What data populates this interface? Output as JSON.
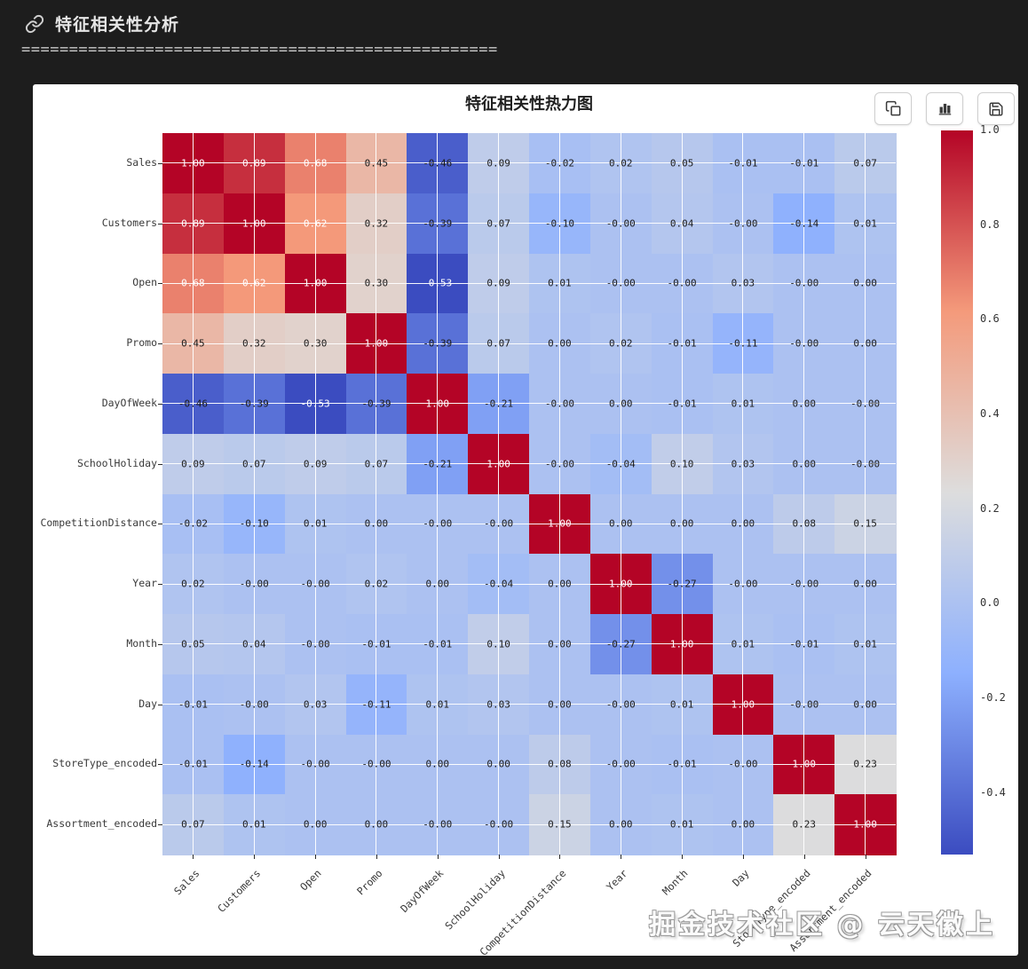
{
  "header": {
    "title": "特征相关性分析",
    "separator": "=================================================="
  },
  "panel": {
    "chart_title": "特征相关性热力图",
    "toolbar": [
      {
        "name": "copy-button",
        "icon": "copy-icon"
      },
      {
        "name": "chart-button",
        "icon": "bar-chart-icon"
      },
      {
        "name": "save-button",
        "icon": "save-icon"
      }
    ]
  },
  "chart_data": {
    "type": "heatmap",
    "title": "特征相关性热力图",
    "labels": [
      "Sales",
      "Customers",
      "Open",
      "Promo",
      "DayOfWeek",
      "SchoolHoliday",
      "CompetitionDistance",
      "Year",
      "Month",
      "Day",
      "StoreType_encoded",
      "Assortment_encoded"
    ],
    "matrix": [
      [
        "1.00",
        "0.89",
        "0.68",
        "0.45",
        "-0.46",
        "0.09",
        "-0.02",
        "0.02",
        "0.05",
        "-0.01",
        "-0.01",
        "0.07"
      ],
      [
        "0.89",
        "1.00",
        "0.62",
        "0.32",
        "-0.39",
        "0.07",
        "-0.10",
        "-0.00",
        "0.04",
        "-0.00",
        "-0.14",
        "0.01"
      ],
      [
        "0.68",
        "0.62",
        "1.00",
        "0.30",
        "-0.53",
        "0.09",
        "0.01",
        "-0.00",
        "-0.00",
        "0.03",
        "-0.00",
        "0.00"
      ],
      [
        "0.45",
        "0.32",
        "0.30",
        "1.00",
        "-0.39",
        "0.07",
        "0.00",
        "0.02",
        "-0.01",
        "-0.11",
        "-0.00",
        "0.00"
      ],
      [
        "-0.46",
        "-0.39",
        "-0.53",
        "-0.39",
        "1.00",
        "-0.21",
        "-0.00",
        "0.00",
        "-0.01",
        "0.01",
        "0.00",
        "-0.00"
      ],
      [
        "0.09",
        "0.07",
        "0.09",
        "0.07",
        "-0.21",
        "1.00",
        "-0.00",
        "-0.04",
        "0.10",
        "0.03",
        "0.00",
        "-0.00"
      ],
      [
        "-0.02",
        "-0.10",
        "0.01",
        "0.00",
        "-0.00",
        "-0.00",
        "1.00",
        "0.00",
        "0.00",
        "0.00",
        "0.08",
        "0.15"
      ],
      [
        "0.02",
        "-0.00",
        "-0.00",
        "0.02",
        "0.00",
        "-0.04",
        "0.00",
        "1.00",
        "-0.27",
        "-0.00",
        "-0.00",
        "0.00"
      ],
      [
        "0.05",
        "0.04",
        "-0.00",
        "-0.01",
        "-0.01",
        "0.10",
        "0.00",
        "-0.27",
        "1.00",
        "0.01",
        "-0.01",
        "0.01"
      ],
      [
        "-0.01",
        "-0.00",
        "0.03",
        "-0.11",
        "0.01",
        "0.03",
        "0.00",
        "-0.00",
        "0.01",
        "1.00",
        "-0.00",
        "0.00"
      ],
      [
        "-0.01",
        "-0.14",
        "-0.00",
        "-0.00",
        "0.00",
        "0.00",
        "0.08",
        "-0.00",
        "-0.01",
        "-0.00",
        "1.00",
        "0.23"
      ],
      [
        "0.07",
        "0.01",
        "0.00",
        "0.00",
        "-0.00",
        "-0.00",
        "0.15",
        "0.00",
        "0.01",
        "0.00",
        "0.23",
        "1.00"
      ]
    ],
    "vmin": -0.53,
    "vmax": 1.0,
    "colormap": {
      "name": "coolwarm",
      "anchors": [
        "#3b4cc0",
        "#8db0fe",
        "#dddddd",
        "#f49a7b",
        "#b40426"
      ]
    },
    "colorbar_ticks": [
      "1.0",
      "0.8",
      "0.6",
      "0.4",
      "0.2",
      "0.0",
      "-0.2",
      "-0.4"
    ],
    "annotation_colors": {
      "light": "#ffffff",
      "dark": "#1c1c1c",
      "white_threshold": 0.5
    },
    "grid": true,
    "legend_position": "right-colorbar"
  },
  "watermark": "掘金技术社区 @ 云天徽上"
}
